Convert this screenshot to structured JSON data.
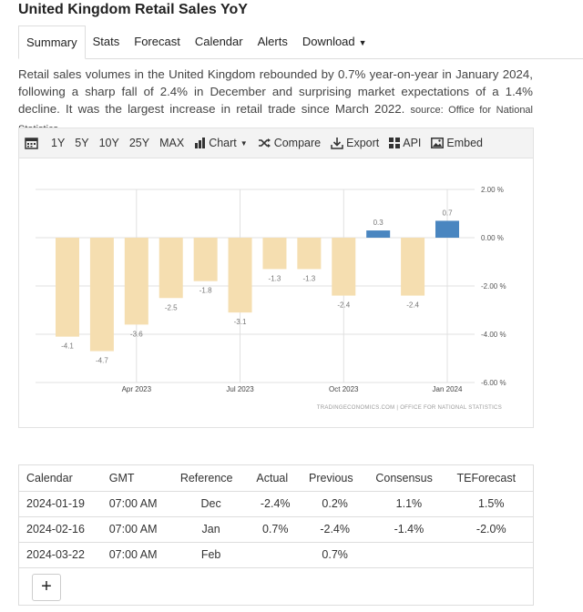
{
  "page": {
    "title": "United Kingdom Retail Sales YoY",
    "description": "Retail sales volumes in the United Kingdom rebounded by 0.7% year-on-year in January 2024, following a sharp fall of 2.4% in December and surprising market expectations of a 1.4% decline. It was the largest increase in retail trade since March 2022.",
    "source": "source: Office for National Statistics"
  },
  "tabs": [
    "Summary",
    "Stats",
    "Forecast",
    "Calendar",
    "Alerts",
    "Download"
  ],
  "toolbar": {
    "ranges": [
      "1Y",
      "5Y",
      "10Y",
      "25Y",
      "MAX"
    ],
    "chart": "Chart",
    "compare": "Compare",
    "export": "Export",
    "api": "API",
    "embed": "Embed"
  },
  "chart_data": {
    "type": "bar",
    "categories": [
      "Feb 2023",
      "Mar 2023",
      "Apr 2023",
      "May 2023",
      "Jun 2023",
      "Jul 2023",
      "Aug 2023",
      "Sep 2023",
      "Oct 2023",
      "Nov 2023",
      "Dec 2023",
      "Jan 2024"
    ],
    "values": [
      -4.1,
      -4.7,
      -3.6,
      -2.5,
      -1.8,
      -3.1,
      -1.3,
      -1.3,
      -2.4,
      0.3,
      -2.4,
      0.7
    ],
    "data_labels": [
      "-4.1",
      "-4.7",
      "-3.6",
      "-2.5",
      "-1.8",
      "-3.1",
      "-1.3",
      "-1.3",
      "-2.4",
      "0.3",
      "-2.4",
      "0.7"
    ],
    "x_tick_labels": [
      {
        "label": "Apr 2023",
        "category": "Apr 2023"
      },
      {
        "label": "Jul 2023",
        "category": "Jul 2023"
      },
      {
        "label": "Oct 2023",
        "category": "Oct 2023"
      },
      {
        "label": "Jan 2024",
        "category": "Jan 2024"
      }
    ],
    "y_ticks": [
      2,
      0,
      -2,
      -4,
      -6
    ],
    "y_tick_labels": [
      "2.00 %",
      "0.00 %",
      "-2.00 %",
      "-4.00 %",
      "-6.00 %"
    ],
    "ylim": [
      -6,
      2
    ],
    "colors": {
      "negative": "#f5deb0",
      "positive": "#4a86c0",
      "grid": "#e0e0e0",
      "label": "#777777"
    },
    "grid": true,
    "y_axis_position": "right",
    "watermark": "TRADINGECONOMICS.COM  |  OFFICE FOR NATIONAL STATISTICS"
  },
  "calendar": {
    "headers": [
      "Calendar",
      "GMT",
      "Reference",
      "Actual",
      "Previous",
      "Consensus",
      "TEForecast"
    ],
    "rows": [
      [
        "2024-01-19",
        "07:00 AM",
        "Dec",
        "-2.4%",
        "0.2%",
        "1.1%",
        "1.5%"
      ],
      [
        "2024-02-16",
        "07:00 AM",
        "Jan",
        "0.7%",
        "-2.4%",
        "-1.4%",
        "-2.0%"
      ],
      [
        "2024-03-22",
        "07:00 AM",
        "Feb",
        "",
        "0.7%",
        "",
        ""
      ]
    ],
    "add_label": "+"
  }
}
